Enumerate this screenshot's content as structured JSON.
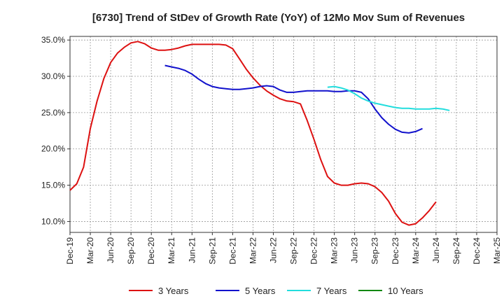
{
  "chart_data": {
    "type": "line",
    "title": "[6730]  Trend of StDev of Growth Rate (YoY) of 12Mo Mov Sum of Revenues",
    "xlabel": "",
    "ylabel": "",
    "ylim": [
      8.5,
      35.5
    ],
    "grid": true,
    "legend_position": "bottom",
    "x_tick_labels": [
      "Dec-19",
      "Mar-20",
      "Jun-20",
      "Sep-20",
      "Dec-20",
      "Mar-21",
      "Jun-21",
      "Sep-21",
      "Dec-21",
      "Mar-22",
      "Jun-22",
      "Sep-22",
      "Dec-22",
      "Mar-23",
      "Jun-23",
      "Sep-23",
      "Dec-23",
      "Mar-24",
      "Jun-24",
      "Sep-24",
      "Dec-24",
      "Mar-25"
    ],
    "y_ticks": [
      10,
      15,
      20,
      25,
      30,
      35
    ],
    "y_tick_labels": [
      "10.0%",
      "15.0%",
      "20.0%",
      "25.0%",
      "30.0%",
      "35.0%"
    ],
    "series": [
      {
        "name": "3 Years",
        "color": "#dd1111",
        "start_index": 0,
        "values": [
          14.3,
          15.2,
          17.5,
          22.8,
          26.6,
          29.7,
          31.9,
          33.2,
          34.0,
          34.6,
          34.8,
          34.5,
          33.9,
          33.6,
          33.6,
          33.7,
          33.9,
          34.2,
          34.4,
          34.4,
          34.4,
          34.4,
          34.4,
          34.3,
          33.8,
          32.4,
          31.0,
          29.8,
          28.8,
          28.0,
          27.4,
          26.9,
          26.6,
          26.5,
          26.2,
          23.9,
          21.3,
          18.5,
          16.2,
          15.3,
          15.0,
          15.0,
          15.2,
          15.3,
          15.2,
          14.8,
          14.0,
          12.8,
          11.1,
          9.9,
          9.5,
          9.7,
          10.5,
          11.5,
          12.7
        ]
      },
      {
        "name": "5 Years",
        "color": "#1111cc",
        "start_index": 14,
        "values": [
          31.5,
          31.3,
          31.1,
          30.8,
          30.3,
          29.6,
          29.0,
          28.6,
          28.4,
          28.3,
          28.2,
          28.2,
          28.3,
          28.4,
          28.6,
          28.7,
          28.6,
          28.1,
          27.8,
          27.8,
          27.9,
          28.0,
          28.0,
          28.0,
          28.0,
          27.9,
          27.9,
          28.0,
          28.0,
          27.8,
          26.9,
          25.5,
          24.3,
          23.4,
          22.7,
          22.3,
          22.2,
          22.4,
          22.8
        ]
      },
      {
        "name": "7 Years",
        "color": "#22dddd",
        "start_index": 38,
        "values": [
          28.5,
          28.6,
          28.4,
          28.1,
          27.6,
          27.0,
          26.6,
          26.3,
          26.1,
          25.9,
          25.7,
          25.6,
          25.6,
          25.5,
          25.5,
          25.5,
          25.6,
          25.5,
          25.3
        ]
      },
      {
        "name": "10 Years",
        "color": "#118811",
        "start_index": 0,
        "values": []
      }
    ]
  }
}
